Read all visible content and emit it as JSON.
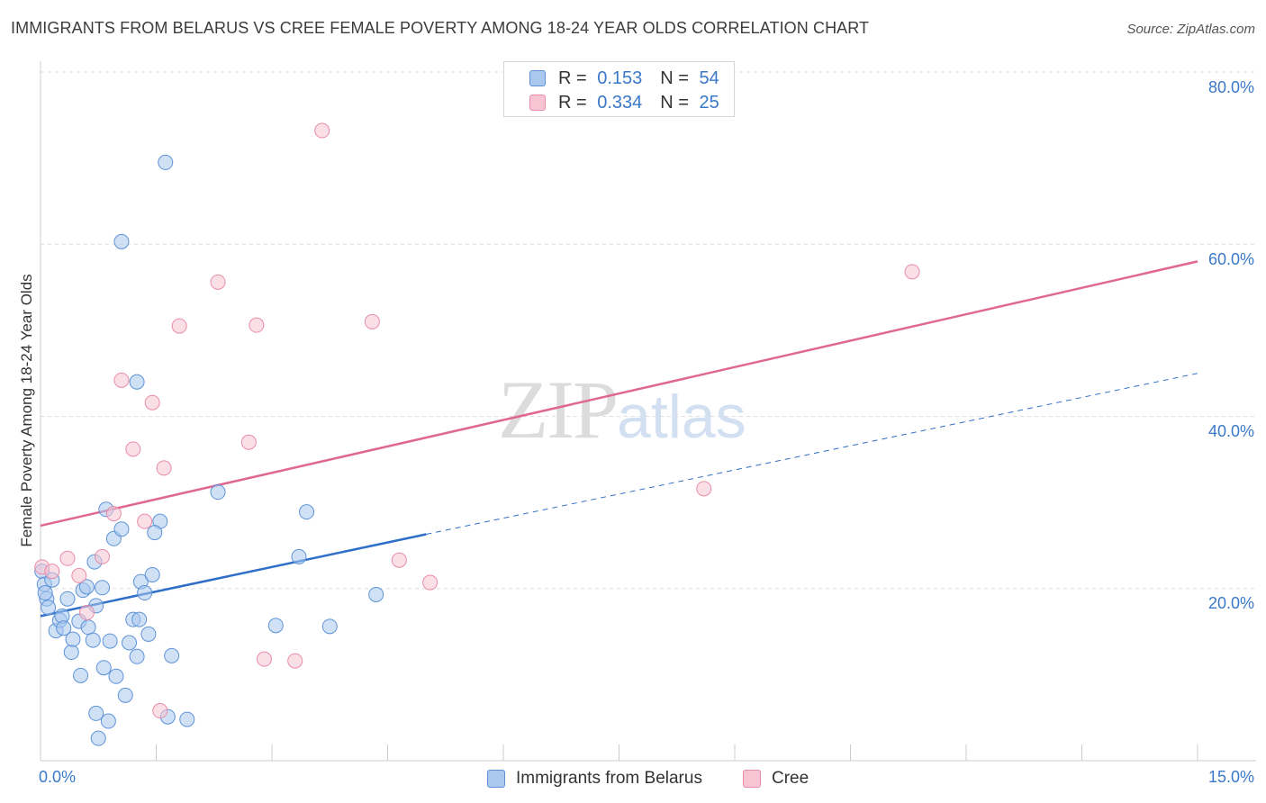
{
  "title": "IMMIGRANTS FROM BELARUS VS CREE FEMALE POVERTY AMONG 18-24 YEAR OLDS CORRELATION CHART",
  "source": "Source: ZipAtlas.com",
  "watermark": {
    "zip": "ZIP",
    "atlas": "atlas"
  },
  "legend": {
    "r_label": "R =",
    "n_label": "N =",
    "rows": [
      {
        "r": "0.153",
        "n": "54"
      },
      {
        "r": "0.334",
        "n": "25"
      }
    ]
  },
  "colors": {
    "belarus_fill": "#aac8ee",
    "belarus_stroke": "#5d93d6",
    "belarus_line": "#2f6fc9",
    "cree_fill": "#f8c4d4",
    "cree_stroke": "#e88ca8",
    "cree_line": "#e06890",
    "tick_text": "#3a78c8",
    "grid": "#dddddd"
  },
  "chart_data": {
    "type": "scatter",
    "xlabel": "",
    "ylabel": "Female Poverty Among 18-24 Year Olds",
    "xlim": [
      0,
      15
    ],
    "ylim": [
      0,
      80
    ],
    "x_tick_labels": [
      "0.0%",
      "15.0%"
    ],
    "y_ticks": [
      20,
      40,
      60,
      80
    ],
    "y_tick_labels": [
      "20.0%",
      "40.0%",
      "60.0%",
      "80.0%"
    ],
    "grid": true,
    "legend_position": "top-center",
    "series": [
      {
        "name": "Immigrants from Belarus",
        "r": 0.153,
        "n": 54,
        "trend": {
          "x": [
            0.0,
            5.0
          ],
          "y": [
            16.8,
            26.3
          ],
          "dashed_extension": {
            "x": [
              5.0,
              15.0
            ],
            "y": [
              26.3,
              45.0
            ]
          }
        },
        "points": [
          [
            0.02,
            22.0
          ],
          [
            0.05,
            20.5
          ],
          [
            0.08,
            18.8
          ],
          [
            0.1,
            17.8
          ],
          [
            0.15,
            21.0
          ],
          [
            0.2,
            15.1
          ],
          [
            0.25,
            16.3
          ],
          [
            0.28,
            16.8
          ],
          [
            0.3,
            15.4
          ],
          [
            0.35,
            18.8
          ],
          [
            0.4,
            12.6
          ],
          [
            0.42,
            14.1
          ],
          [
            0.5,
            16.2
          ],
          [
            0.52,
            9.9
          ],
          [
            0.55,
            19.8
          ],
          [
            0.6,
            20.2
          ],
          [
            0.62,
            15.5
          ],
          [
            0.68,
            14.0
          ],
          [
            0.72,
            18.0
          ],
          [
            0.7,
            23.1
          ],
          [
            0.8,
            20.1
          ],
          [
            0.85,
            29.2
          ],
          [
            0.82,
            10.8
          ],
          [
            0.9,
            13.9
          ],
          [
            0.95,
            25.8
          ],
          [
            0.98,
            9.8
          ],
          [
            1.05,
            26.9
          ],
          [
            1.1,
            7.6
          ],
          [
            1.15,
            13.7
          ],
          [
            1.2,
            16.4
          ],
          [
            1.25,
            12.1
          ],
          [
            1.3,
            20.8
          ],
          [
            1.35,
            19.5
          ],
          [
            1.4,
            14.7
          ],
          [
            1.45,
            21.6
          ],
          [
            1.55,
            27.8
          ],
          [
            1.62,
            69.5
          ],
          [
            1.7,
            12.2
          ],
          [
            1.25,
            44.0
          ],
          [
            1.05,
            60.3
          ],
          [
            1.65,
            5.1
          ],
          [
            1.9,
            4.8
          ],
          [
            2.3,
            31.2
          ],
          [
            3.05,
            15.7
          ],
          [
            3.35,
            23.7
          ],
          [
            3.45,
            28.9
          ],
          [
            3.75,
            15.6
          ],
          [
            4.35,
            19.3
          ],
          [
            0.72,
            5.5
          ],
          [
            0.88,
            4.6
          ],
          [
            0.75,
            2.6
          ],
          [
            1.28,
            16.4
          ],
          [
            1.48,
            26.5
          ],
          [
            0.06,
            19.5
          ]
        ]
      },
      {
        "name": "Cree",
        "r": 0.334,
        "n": 25,
        "trend": {
          "x": [
            0.0,
            15.0
          ],
          "y": [
            27.3,
            58.0
          ]
        },
        "points": [
          [
            0.02,
            22.5
          ],
          [
            0.15,
            22.0
          ],
          [
            0.35,
            23.5
          ],
          [
            0.5,
            21.5
          ],
          [
            0.6,
            17.2
          ],
          [
            0.8,
            23.7
          ],
          [
            0.95,
            28.7
          ],
          [
            1.05,
            44.2
          ],
          [
            1.2,
            36.2
          ],
          [
            1.35,
            27.8
          ],
          [
            1.45,
            41.6
          ],
          [
            1.6,
            34.0
          ],
          [
            1.8,
            50.5
          ],
          [
            2.3,
            55.6
          ],
          [
            2.7,
            37.0
          ],
          [
            2.8,
            50.6
          ],
          [
            2.9,
            11.8
          ],
          [
            3.3,
            11.6
          ],
          [
            3.65,
            73.2
          ],
          [
            4.3,
            51.0
          ],
          [
            4.65,
            23.3
          ],
          [
            5.05,
            20.7
          ],
          [
            8.6,
            31.6
          ],
          [
            11.3,
            56.8
          ],
          [
            1.55,
            5.8
          ]
        ]
      }
    ]
  },
  "bottom_legend": [
    "Immigrants from Belarus",
    "Cree"
  ]
}
